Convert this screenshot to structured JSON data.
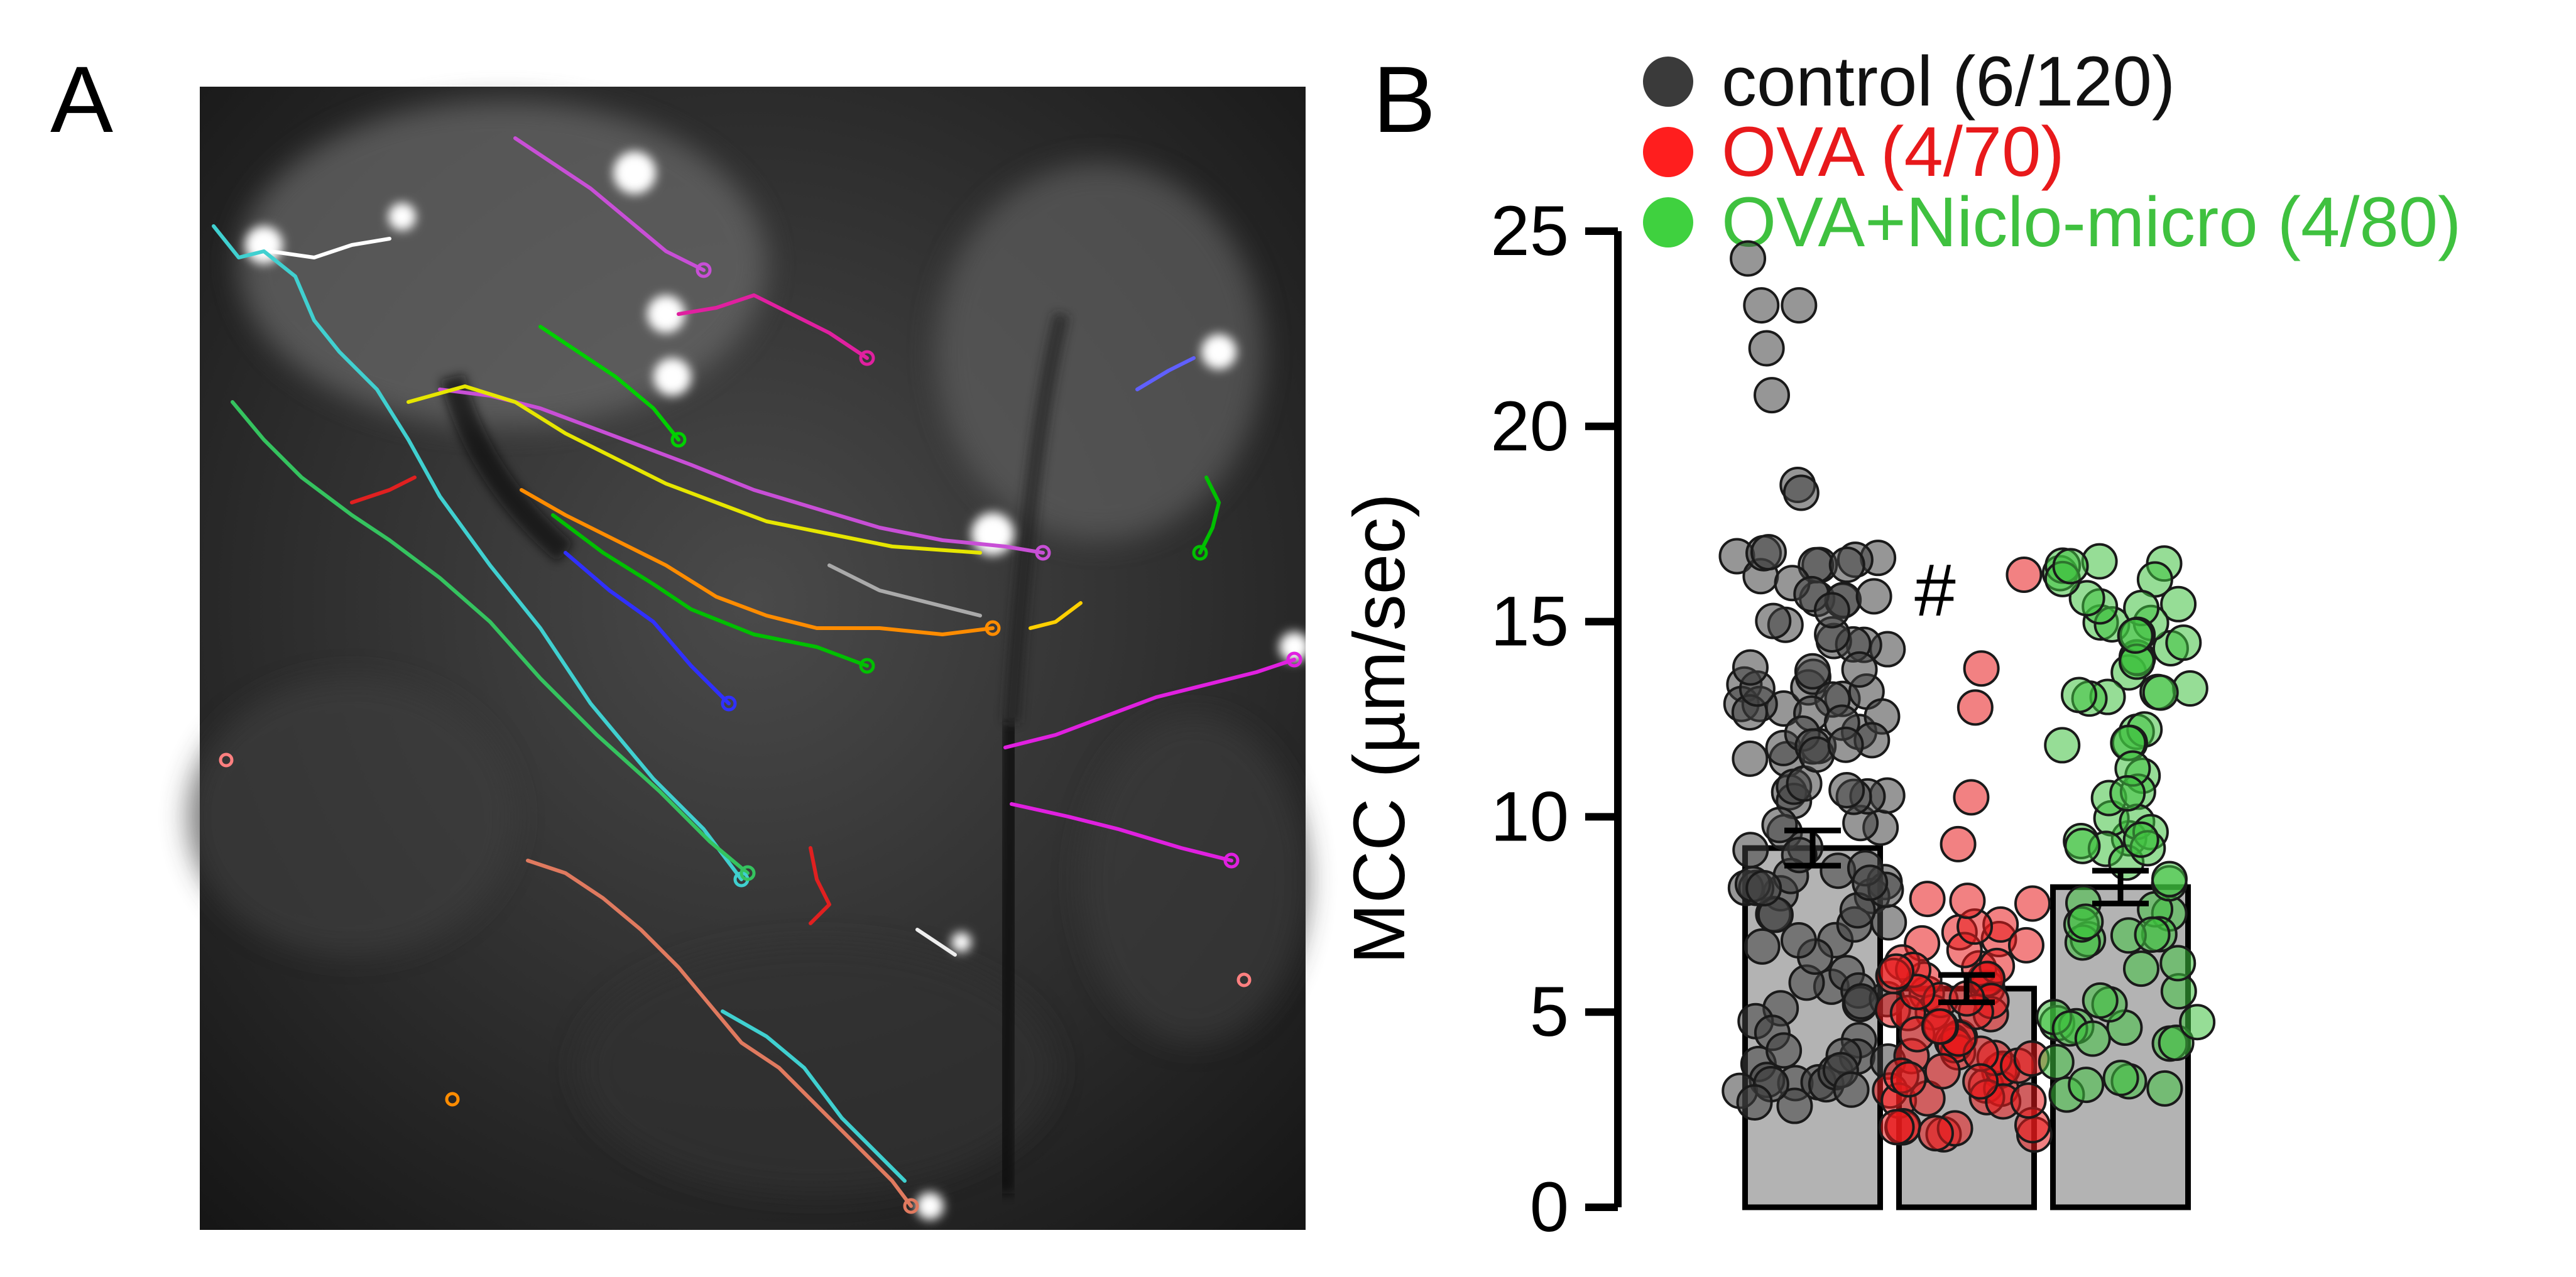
{
  "panel_a": {
    "label": "A"
  },
  "panel_b": {
    "label": "B"
  },
  "chart_data": {
    "type": "bar",
    "title": "",
    "xlabel": "",
    "ylabel": "MCC (µm/sec)",
    "ylim": [
      0,
      25
    ],
    "yticks": [
      0,
      5,
      10,
      15,
      20,
      25
    ],
    "grid": false,
    "legend_placement": "top",
    "annotation": "#",
    "categories": [
      "control (6/120)",
      "OVA (4/70)",
      "OVA+Niclo-micro (4/80)"
    ],
    "series": [
      {
        "name": "control (6/120)",
        "mean": 9.2,
        "sem": 0.45,
        "color": "#404040"
      },
      {
        "name": "OVA (4/70)",
        "mean": 5.6,
        "sem": 0.35,
        "color": "#e8191b"
      },
      {
        "name": "OVA+Niclo-micro (4/80)",
        "mean": 8.2,
        "sem": 0.42,
        "color": "#3fc13f"
      }
    ],
    "bar_color": "#b3b3b3"
  }
}
